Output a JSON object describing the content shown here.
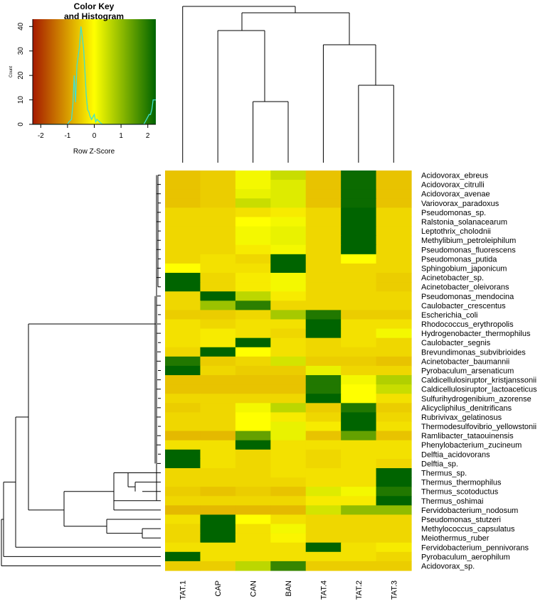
{
  "chart_data": {
    "type": "heatmap",
    "title": "",
    "color_key": {
      "title_line1": "Color Key",
      "title_line2": "and Histogram",
      "xlabel": "Row Z-Score",
      "ylabel": "Count",
      "x_range": [
        -2.3,
        2.3
      ],
      "y_range": [
        0,
        43
      ],
      "x_ticks": [
        "-2",
        "-1",
        "0",
        "1",
        "2"
      ],
      "y_ticks": [
        "0",
        "10",
        "20",
        "30",
        "40"
      ],
      "colors": {
        "low": "#a51a00",
        "mid": "#ffff00",
        "high": "#006400"
      },
      "histogram": [
        [
          -2.3,
          0
        ],
        [
          -1.0,
          0
        ],
        [
          -0.95,
          1
        ],
        [
          -0.85,
          2
        ],
        [
          -0.8,
          8
        ],
        [
          -0.75,
          20
        ],
        [
          -0.7,
          9
        ],
        [
          -0.65,
          24
        ],
        [
          -0.6,
          28
        ],
        [
          -0.55,
          32
        ],
        [
          -0.5,
          40
        ],
        [
          -0.45,
          36
        ],
        [
          -0.4,
          31
        ],
        [
          -0.35,
          22
        ],
        [
          -0.3,
          12
        ],
        [
          -0.25,
          6
        ],
        [
          -0.2,
          5
        ],
        [
          -0.15,
          3
        ],
        [
          -0.1,
          2
        ],
        [
          0.0,
          4
        ],
        [
          0.05,
          1
        ],
        [
          0.1,
          2
        ],
        [
          0.2,
          1
        ],
        [
          0.3,
          0
        ],
        [
          1.85,
          0
        ],
        [
          1.9,
          1
        ],
        [
          2.0,
          3
        ],
        [
          2.05,
          4
        ],
        [
          2.1,
          4
        ],
        [
          2.15,
          6
        ],
        [
          2.2,
          10
        ],
        [
          2.3,
          10
        ]
      ]
    },
    "columns": [
      "TAT.1",
      "CAP",
      "CAN",
      "BAN",
      "TAT.4",
      "TAT.2",
      "TAT.3"
    ],
    "rows": [
      "Acidovorax_ebreus",
      "Acidovorax_citrulli",
      "Acidovorax_avenae",
      "Variovorax_paradoxus",
      "Pseudomonas_sp.",
      "Ralstonia_solanacearum",
      "Leptothrix_cholodnii",
      "Methylibium_petroleiphilum",
      "Pseudomonas_fluorescens",
      "Pseudomonas_putida",
      "Sphingobium_japonicum",
      "Acinetobacter_sp.",
      "Acinetobacter_oleivorans",
      "Pseudomonas_mendocina",
      "Caulobacter_crescentus",
      "Escherichia_coli",
      "Rhodococcus_erythropolis",
      "Hydrogenobacter_thermophilus",
      "Caulobacter_segnis",
      "Brevundimonas_subvibrioides",
      "Acinetobacter_baumannii",
      "Pyrobaculum_arsenaticum",
      "Caldicellulosiruptor_kristjanssonii",
      "Caldicellulosiruptor_lactoaceticus",
      "Sulfurihydrogenibium_azorense",
      "Alicycliphilus_denitrificans",
      "Rubrivivax_gelatinosus",
      "Thermodesulfovibrio_yellowstonii",
      "Ramlibacter_tataouinensis",
      "Phenylobacterium_zucineum",
      "Delftia_acidovorans",
      "Delftia_sp.",
      "Thermus_sp.",
      "Thermus_thermophilus",
      "Thermus_scotoductus",
      "Thermus_oshimai",
      "Fervidobacterium_nodosum",
      "Pseudomonas_stutzeri",
      "Methylococcus_capsulatus",
      "Meiothermus_ruber",
      "Fervidobacterium_pennivorans",
      "Pyrobaculum_aerophilum",
      "Acidovorax_sp."
    ],
    "z_scores": [
      [
        -0.6,
        -0.5,
        0.1,
        0.5,
        -0.6,
        2.2,
        -0.6
      ],
      [
        -0.6,
        -0.5,
        0.1,
        0.3,
        -0.6,
        2.2,
        -0.6
      ],
      [
        -0.6,
        -0.5,
        0.2,
        0.3,
        -0.6,
        2.2,
        -0.6
      ],
      [
        -0.6,
        -0.5,
        0.5,
        0.3,
        -0.6,
        2.2,
        -0.6
      ],
      [
        -0.4,
        -0.4,
        -0.3,
        -0.2,
        -0.4,
        2.3,
        -0.4
      ],
      [
        -0.4,
        -0.4,
        0.0,
        0.1,
        -0.4,
        2.3,
        -0.4
      ],
      [
        -0.4,
        -0.4,
        0.1,
        0.2,
        -0.4,
        2.3,
        -0.4
      ],
      [
        -0.4,
        -0.4,
        0.1,
        0.2,
        -0.4,
        2.3,
        -0.4
      ],
      [
        -0.4,
        -0.4,
        -0.2,
        0.1,
        -0.4,
        2.3,
        -0.4
      ],
      [
        -0.4,
        -0.3,
        -0.4,
        2.3,
        -0.4,
        0.0,
        -0.4
      ],
      [
        0.0,
        -0.3,
        -0.3,
        2.3,
        -0.4,
        -0.4,
        -0.4
      ],
      [
        2.3,
        -0.4,
        -0.2,
        0.1,
        -0.4,
        -0.4,
        -0.5
      ],
      [
        2.3,
        -0.4,
        -0.2,
        0.1,
        -0.4,
        -0.4,
        -0.5
      ],
      [
        -0.4,
        2.3,
        0.6,
        -0.2,
        -0.4,
        -0.4,
        -0.4
      ],
      [
        -0.4,
        0.9,
        1.9,
        -0.4,
        -0.4,
        -0.4,
        -0.4
      ],
      [
        -0.5,
        -0.5,
        -0.4,
        0.8,
        2.0,
        -0.5,
        -0.5
      ],
      [
        -0.3,
        -0.4,
        -0.3,
        -0.3,
        2.3,
        -0.3,
        -0.3
      ],
      [
        -0.3,
        -0.2,
        -0.3,
        -0.4,
        2.3,
        -0.3,
        0.1
      ],
      [
        -0.3,
        -0.2,
        2.3,
        -0.3,
        -0.4,
        -0.3,
        -0.4
      ],
      [
        -0.4,
        2.3,
        0.0,
        -0.3,
        -0.4,
        -0.4,
        -0.4
      ],
      [
        2.0,
        -0.5,
        -0.4,
        0.4,
        -0.5,
        -0.5,
        -0.6
      ],
      [
        2.3,
        -0.4,
        -0.5,
        -0.5,
        0.2,
        -0.4,
        -0.4
      ],
      [
        -0.6,
        -0.6,
        -0.6,
        -0.6,
        2.0,
        0.1,
        0.7
      ],
      [
        -0.6,
        -0.6,
        -0.6,
        -0.6,
        2.0,
        0.0,
        0.5
      ],
      [
        -0.4,
        -0.4,
        -0.4,
        -0.4,
        2.3,
        0.0,
        -0.3
      ],
      [
        -0.5,
        -0.4,
        0.1,
        0.6,
        -0.5,
        2.0,
        -0.5
      ],
      [
        -0.4,
        -0.4,
        0.0,
        -0.2,
        -0.4,
        2.3,
        -0.4
      ],
      [
        -0.4,
        -0.4,
        0.0,
        0.2,
        -0.2,
        2.3,
        -0.3
      ],
      [
        -0.7,
        -0.7,
        1.4,
        0.2,
        -0.6,
        1.4,
        -0.6
      ],
      [
        -0.3,
        -0.3,
        2.3,
        -0.3,
        -0.3,
        -0.3,
        -0.3
      ],
      [
        2.3,
        -0.3,
        -0.4,
        -0.3,
        -0.4,
        -0.3,
        -0.3
      ],
      [
        2.3,
        -0.3,
        -0.4,
        -0.3,
        -0.4,
        -0.3,
        -0.4
      ],
      [
        -0.4,
        -0.4,
        -0.4,
        -0.3,
        -0.3,
        -0.3,
        2.3
      ],
      [
        -0.4,
        -0.4,
        -0.4,
        -0.4,
        -0.3,
        -0.3,
        2.3
      ],
      [
        -0.5,
        -0.6,
        -0.5,
        -0.6,
        0.3,
        0.1,
        2.0
      ],
      [
        -0.4,
        -0.4,
        -0.4,
        -0.4,
        -0.2,
        -0.2,
        2.3
      ],
      [
        -0.7,
        -0.7,
        -0.7,
        -0.7,
        0.4,
        1.0,
        1.0
      ],
      [
        -0.3,
        2.3,
        0.0,
        -0.3,
        -0.4,
        -0.4,
        -0.4
      ],
      [
        -0.4,
        2.3,
        -0.3,
        0.1,
        -0.4,
        -0.4,
        -0.4
      ],
      [
        -0.4,
        2.3,
        -0.3,
        -0.1,
        -0.4,
        -0.4,
        -0.4
      ],
      [
        -0.3,
        -0.3,
        -0.3,
        -0.3,
        2.3,
        -0.3,
        -0.2
      ],
      [
        2.3,
        -0.3,
        -0.3,
        -0.3,
        -0.3,
        -0.3,
        -0.4
      ],
      [
        -0.5,
        -0.5,
        0.6,
        1.8,
        -0.5,
        -0.5,
        -0.5
      ]
    ]
  }
}
